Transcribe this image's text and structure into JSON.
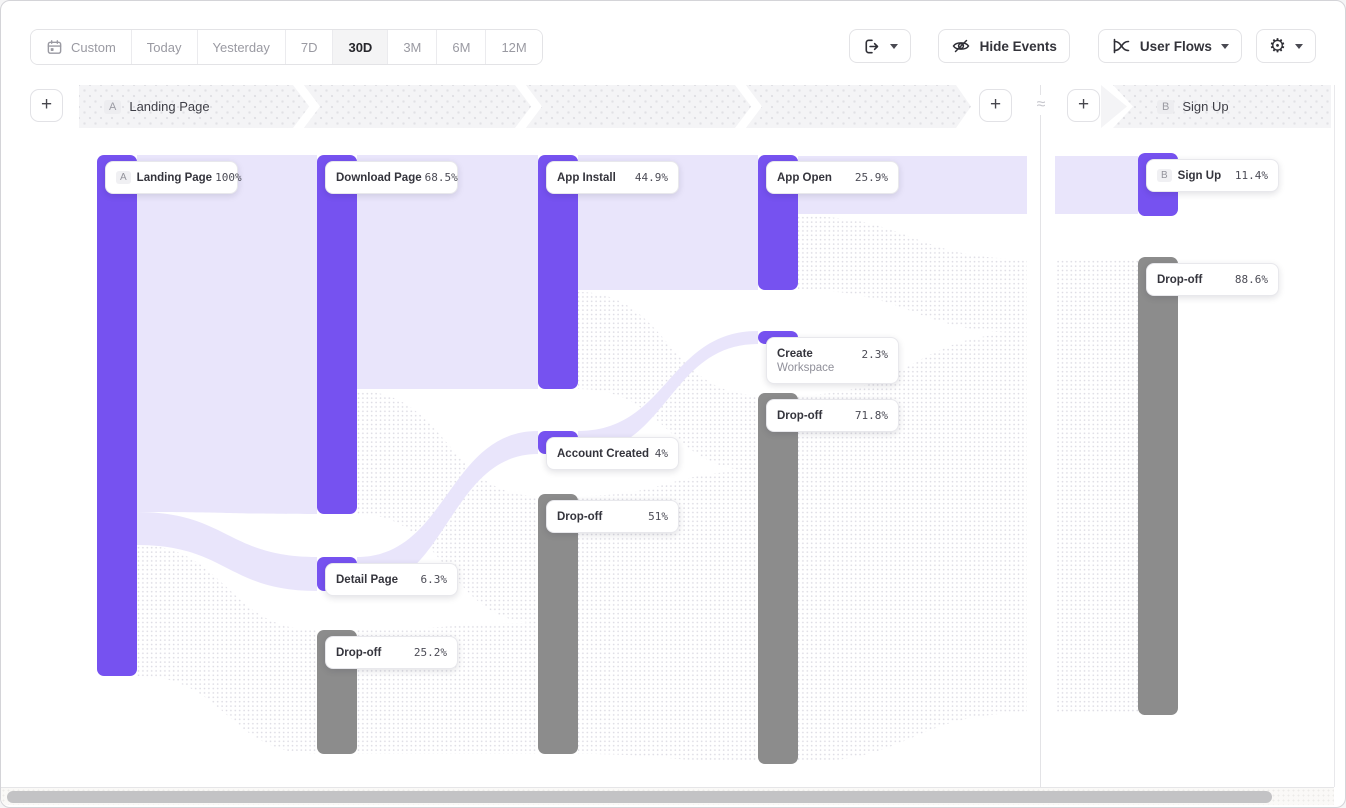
{
  "toolbar": {
    "date_ranges": [
      {
        "label": "Custom",
        "icon": "calendar-icon",
        "selected": false
      },
      {
        "label": "Today",
        "selected": false
      },
      {
        "label": "Yesterday",
        "selected": false
      },
      {
        "label": "7D",
        "selected": false
      },
      {
        "label": "30D",
        "selected": true
      },
      {
        "label": "3M",
        "selected": false
      },
      {
        "label": "6M",
        "selected": false
      },
      {
        "label": "12M",
        "selected": false
      }
    ],
    "export_button": {
      "icon": "export-icon",
      "has_dropdown": true
    },
    "hide_events_label": "Hide Events",
    "view_selector_label": "User Flows",
    "settings_button": {
      "icon": "gear-icon",
      "has_dropdown": true
    }
  },
  "step_header": {
    "add_button_label": "+",
    "approx_separator": "≈",
    "section_a": {
      "badge": "A",
      "label": "Landing Page",
      "blank_segments": 3
    },
    "section_b": {
      "badge": "B",
      "label": "Sign Up"
    }
  },
  "chart_data": {
    "type": "sankey",
    "unit": "percent",
    "legend": "user flow funnel from Landing Page (section A) to Sign Up (section B)",
    "colors": {
      "event": "#7652f0",
      "dropoff": "#8c8c8c",
      "flow": "#e9e5fb"
    },
    "steps": [
      {
        "step": 1,
        "section": "A",
        "nodes": [
          {
            "label": "Landing Page",
            "badge": "A",
            "kind": "event",
            "value": 100,
            "value_label": "100%"
          }
        ]
      },
      {
        "step": 2,
        "section": "A",
        "nodes": [
          {
            "label": "Download Page",
            "kind": "event",
            "value": 68.5,
            "value_label": "68.5%"
          },
          {
            "label": "Detail Page",
            "kind": "event",
            "value": 6.3,
            "value_label": "6.3%"
          },
          {
            "label": "Drop-off",
            "kind": "dropoff",
            "value": 25.2,
            "value_label": "25.2%"
          }
        ]
      },
      {
        "step": 3,
        "section": "A",
        "nodes": [
          {
            "label": "App Install",
            "kind": "event",
            "value": 44.9,
            "value_label": "44.9%"
          },
          {
            "label": "Account Created",
            "kind": "event",
            "value": 4,
            "value_label": "4%"
          },
          {
            "label": "Drop-off",
            "kind": "dropoff",
            "value": 51,
            "value_label": "51%"
          }
        ]
      },
      {
        "step": 4,
        "section": "A",
        "nodes": [
          {
            "label": "App Open",
            "kind": "event",
            "value": 25.9,
            "value_label": "25.9%"
          },
          {
            "label": "Create Workspace",
            "kind": "event",
            "value": 2.3,
            "value_label": "2.3%"
          },
          {
            "label": "Drop-off",
            "kind": "dropoff",
            "value": 71.8,
            "value_label": "71.8%"
          }
        ]
      },
      {
        "step": 5,
        "section": "B",
        "nodes": [
          {
            "label": "Sign Up",
            "badge": "B",
            "kind": "event",
            "value": 11.4,
            "value_label": "11.4%"
          },
          {
            "label": "Drop-off",
            "kind": "dropoff",
            "value": 88.6,
            "value_label": "88.6%"
          }
        ]
      }
    ],
    "links": [
      {
        "from": "Landing Page",
        "to": "Download Page",
        "style": "solid"
      },
      {
        "from": "Landing Page",
        "to": "Detail Page",
        "style": "solid"
      },
      {
        "from": "Landing Page",
        "to": "Drop-off step 2",
        "style": "dotted"
      },
      {
        "from": "Download Page",
        "to": "App Install",
        "style": "solid"
      },
      {
        "from": "Detail Page",
        "to": "Account Created",
        "style": "solid"
      },
      {
        "from": "Download Page",
        "to": "Drop-off step 3",
        "style": "dotted"
      },
      {
        "from": "App Install",
        "to": "App Open",
        "style": "solid"
      },
      {
        "from": "Account Created",
        "to": "Create Workspace",
        "style": "solid"
      },
      {
        "from": "App Install",
        "to": "Drop-off step 4",
        "style": "dotted"
      },
      {
        "from": "App Open",
        "to": "Sign Up",
        "style": "solid"
      },
      {
        "from": "App Open",
        "to": "Drop-off section B",
        "style": "dotted"
      }
    ]
  }
}
